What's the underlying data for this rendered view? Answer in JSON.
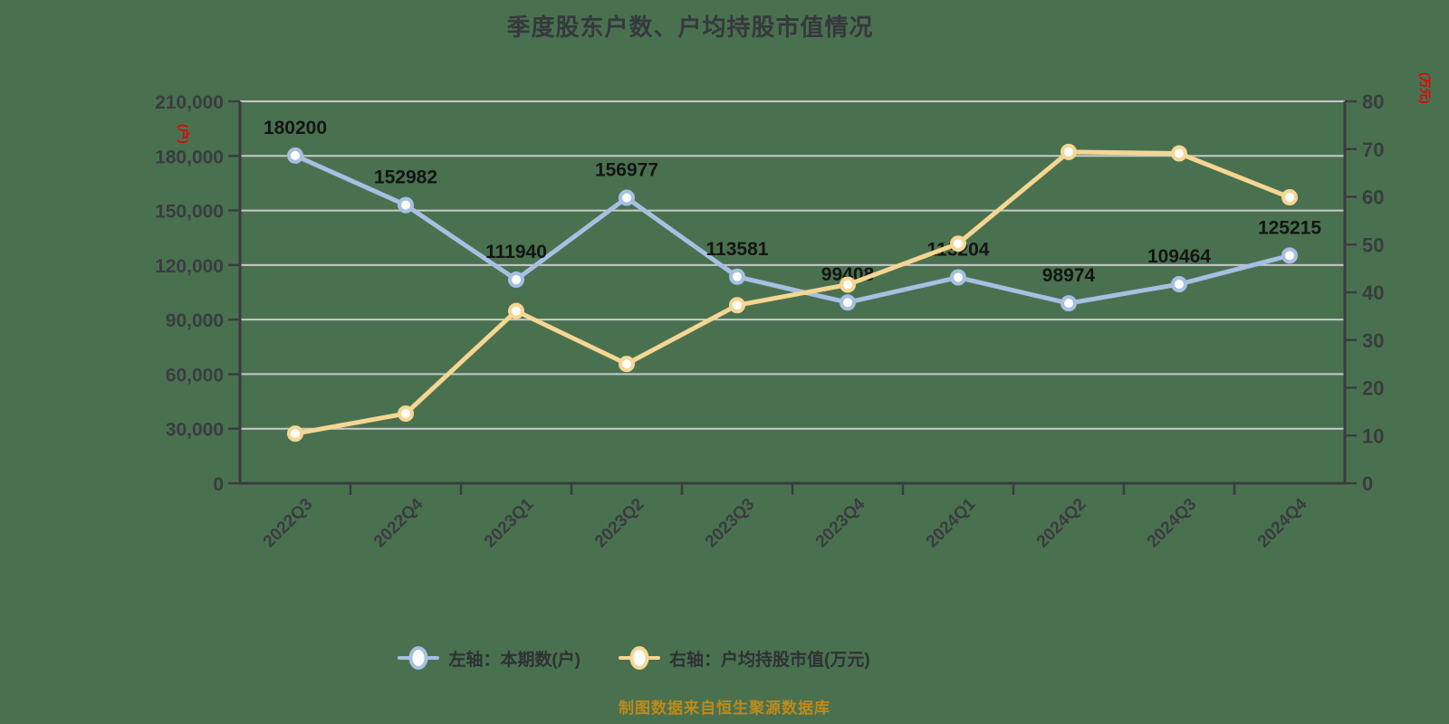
{
  "title": "季度股东户数、户均持股市值情况",
  "source_note": "制图数据来自恒生聚源数据库",
  "colors": {
    "background": "#4a714f",
    "grid": "#c7c9cc",
    "axis": "#3a3c40",
    "tick_text": "#393c40",
    "data_label": "#141414",
    "axis_name_red": "#e60000",
    "series_blue": "#a6bfe2",
    "series_blue_ring": "#9db7de",
    "series_yellow": "#f6d693",
    "series_yellow_ring": "#f3cf87",
    "marker_fill": "#fdfdfb"
  },
  "left_axis": {
    "name": "(户)",
    "min": 0,
    "max": 210000,
    "ticks": [
      "0",
      "30,000",
      "60,000",
      "90,000",
      "120,000",
      "150,000",
      "180,000",
      "210,000"
    ]
  },
  "right_axis": {
    "name": "(万元)",
    "min": 0,
    "max": 80,
    "ticks": [
      "0",
      "10",
      "20",
      "30",
      "40",
      "50",
      "60",
      "70",
      "80"
    ]
  },
  "legend": {
    "items": [
      {
        "label": "左轴：本期数(户)",
        "color": "#a6bfe2"
      },
      {
        "label": "右轴：户均持股市值(万元)",
        "color": "#f6d693"
      }
    ]
  },
  "chart_data": {
    "type": "line",
    "categories": [
      "2022Q3",
      "2022Q4",
      "2023Q1",
      "2023Q2",
      "2023Q3",
      "2023Q4",
      "2024Q1",
      "2024Q2",
      "2024Q3",
      "2024Q4"
    ],
    "series": [
      {
        "name": "左轴：本期数(户)",
        "axis": "left",
        "color": "#a6bfe2",
        "values": [
          180200,
          152982,
          111940,
          156977,
          113581,
          99408,
          113204,
          98974,
          109464,
          125215
        ],
        "data_labels": [
          "180200",
          "152982",
          "111940",
          "156977",
          "113581",
          "99408",
          "113204",
          "98974",
          "109464",
          "125215"
        ]
      },
      {
        "name": "右轴：户均持股市值(万元)",
        "axis": "right",
        "color": "#f6d693",
        "values": [
          10.4,
          14.6,
          36.1,
          25.0,
          37.3,
          41.6,
          50.2,
          69.4,
          69.1,
          59.9
        ],
        "data_labels": []
      }
    ],
    "left_ylim": [
      0,
      210000
    ],
    "right_ylim": [
      0,
      80
    ],
    "grid": true,
    "legend_position": "bottom",
    "title": "季度股东户数、户均持股市值情况",
    "xlabel": "",
    "ylabel_left": "(户)",
    "ylabel_right": "(万元)"
  }
}
